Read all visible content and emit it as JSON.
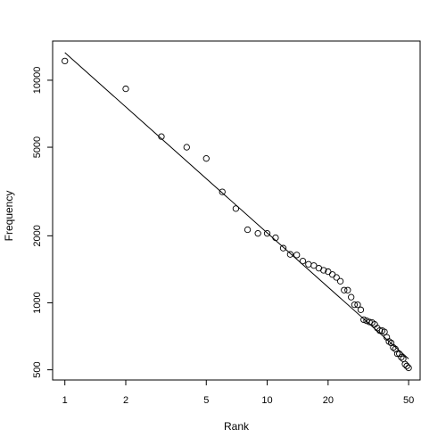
{
  "chart_data": {
    "type": "scatter",
    "xlabel": "Rank",
    "ylabel": "Frequency",
    "x_scale": "log",
    "y_scale": "log",
    "xlim": [
      0.87,
      57
    ],
    "ylim": [
      450,
      15000
    ],
    "x_ticks": [
      1,
      2,
      5,
      10,
      20,
      50
    ],
    "x_tick_labels": [
      "1",
      "2",
      "5",
      "10",
      "20",
      "50"
    ],
    "y_ticks": [
      500,
      1000,
      2000,
      5000,
      10000
    ],
    "y_tick_labels": [
      "500",
      "1000",
      "2000",
      "5000",
      "10000"
    ],
    "grid": false,
    "legend": "none",
    "points": {
      "x": [
        1,
        2,
        3,
        4,
        5,
        6,
        7,
        8,
        9,
        10,
        11,
        12,
        13,
        14,
        15,
        16,
        17,
        18,
        19,
        20,
        21,
        22,
        23,
        24,
        25,
        26,
        27,
        28,
        29,
        30,
        31,
        32,
        33,
        34,
        35,
        36,
        37,
        38,
        39,
        40,
        41,
        42,
        43,
        44,
        45,
        46,
        47,
        48,
        49,
        50
      ],
      "y": [
        12200,
        9150,
        5580,
        5000,
        4450,
        3150,
        2650,
        2130,
        2050,
        2050,
        1960,
        1760,
        1650,
        1640,
        1540,
        1490,
        1470,
        1430,
        1400,
        1380,
        1340,
        1300,
        1250,
        1140,
        1140,
        1060,
        980,
        980,
        930,
        840,
        830,
        820,
        815,
        800,
        770,
        750,
        750,
        740,
        700,
        670,
        660,
        630,
        620,
        590,
        590,
        570,
        560,
        530,
        520,
        510
      ]
    },
    "fit_line": {
      "x": [
        1,
        50
      ],
      "y": [
        13300,
        560
      ]
    },
    "colors": {
      "points": "#000000",
      "line": "#000000",
      "frame": "#000000"
    }
  }
}
